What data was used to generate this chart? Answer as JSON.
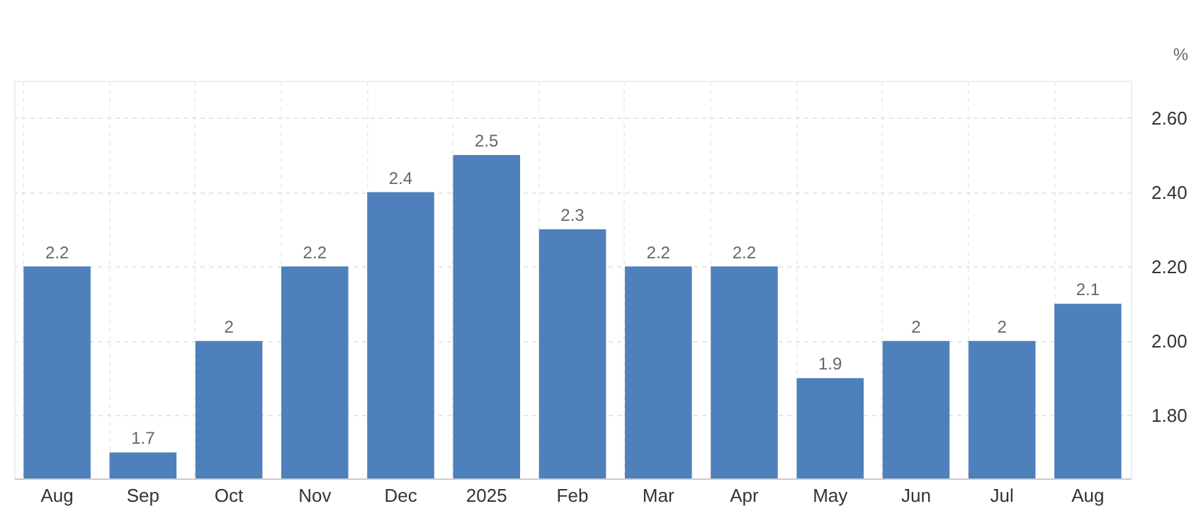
{
  "chart_data": {
    "type": "bar",
    "ylabel": "%",
    "categories": [
      "Aug",
      "Sep",
      "Oct",
      "Nov",
      "Dec",
      "2025",
      "Feb",
      "Mar",
      "Apr",
      "May",
      "Jun",
      "Jul",
      "Aug"
    ],
    "values": [
      2.2,
      1.7,
      2,
      2.2,
      2.4,
      2.5,
      2.3,
      2.2,
      2.2,
      1.9,
      2,
      2,
      2.1
    ],
    "color": "#4e80bb",
    "ylim": [
      1.63,
      2.7
    ],
    "yticks": [
      {
        "value": 1.8,
        "label": "1.80"
      },
      {
        "value": 2.0,
        "label": "2.00"
      },
      {
        "value": 2.2,
        "label": "2.20"
      },
      {
        "value": 2.4,
        "label": "2.40"
      },
      {
        "value": 2.6,
        "label": "2.60"
      }
    ],
    "data_labels": true,
    "grid": true
  }
}
